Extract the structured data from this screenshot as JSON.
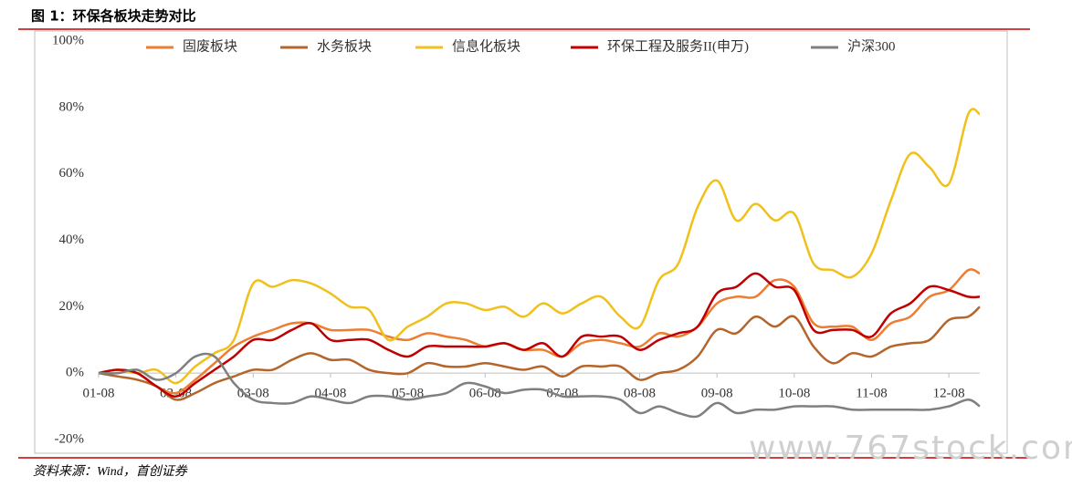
{
  "title": "图 1：环保各板块走势对比",
  "source": "资料来源：Wind，首创证券",
  "watermark": "www.767stock.com",
  "chart_data": {
    "type": "line",
    "x": [
      1,
      1.25,
      1.5,
      1.75,
      2,
      2.25,
      2.5,
      2.75,
      3,
      3.25,
      3.5,
      3.75,
      4,
      4.25,
      4.5,
      4.75,
      5,
      5.25,
      5.5,
      5.75,
      6,
      6.25,
      6.5,
      6.75,
      7,
      7.25,
      7.5,
      7.75,
      8,
      8.25,
      8.5,
      8.75,
      9,
      9.25,
      9.5,
      9.75,
      10,
      10.25,
      10.5,
      10.75,
      11,
      11.25,
      11.5,
      11.75,
      12,
      12.25,
      12.4
    ],
    "series": [
      {
        "name": "固废板块",
        "color": "#ed7d31",
        "values": [
          0,
          1,
          0,
          -4,
          -6,
          -2,
          3,
          8,
          11,
          13,
          15,
          15,
          13,
          13,
          13,
          11,
          10,
          12,
          11,
          10,
          8,
          9,
          7,
          7,
          5,
          9,
          10,
          9,
          8,
          12,
          11,
          14,
          21,
          23,
          23,
          28,
          26,
          15,
          14,
          14,
          10,
          15,
          17,
          23,
          25,
          31,
          30
        ]
      },
      {
        "name": "水务板块",
        "color": "#b5652a",
        "values": [
          0,
          -1,
          -2,
          -4,
          -8,
          -6,
          -3,
          -1,
          1,
          1,
          4,
          6,
          4,
          4,
          1,
          0,
          0,
          3,
          2,
          2,
          3,
          2,
          1,
          2,
          -1,
          2,
          2,
          2,
          -2,
          0,
          1,
          5,
          13,
          12,
          17,
          14,
          17,
          8,
          3,
          6,
          5,
          8,
          9,
          10,
          16,
          17,
          20
        ]
      },
      {
        "name": "信息化板块",
        "color": "#f0c01c",
        "values": [
          0,
          1,
          0,
          1,
          -3,
          2,
          6,
          10,
          27,
          26,
          28,
          27,
          24,
          20,
          19,
          10,
          14,
          17,
          21,
          21,
          19,
          20,
          17,
          21,
          18,
          21,
          23,
          17,
          14,
          28,
          33,
          50,
          58,
          46,
          51,
          46,
          48,
          33,
          31,
          29,
          36,
          52,
          66,
          62,
          57,
          78,
          78
        ]
      },
      {
        "name": "环保工程及服务II(申万)",
        "color": "#c00000",
        "values": [
          0,
          1,
          0,
          -4,
          -7,
          -3,
          1,
          5,
          10,
          10,
          13,
          15,
          10,
          10,
          10,
          7,
          5,
          8,
          8,
          8,
          8,
          9,
          7,
          9,
          5,
          11,
          11,
          11,
          7,
          10,
          12,
          14,
          24,
          26,
          30,
          26,
          25,
          13,
          13,
          13,
          11,
          18,
          21,
          26,
          25,
          23,
          23
        ]
      },
      {
        "name": "沪深300",
        "color": "#7f7f7f",
        "values": [
          0,
          0,
          1,
          -2,
          0,
          5,
          5,
          -3,
          -8,
          -9,
          -9,
          -7,
          -8,
          -9,
          -7,
          -7,
          -8,
          -7,
          -6,
          -3,
          -4,
          -6,
          -5,
          -5,
          -7,
          -7,
          -7,
          -8,
          -12,
          -10,
          -12,
          -13,
          -9,
          -12,
          -11,
          -11,
          -10,
          -10,
          -10,
          -11,
          -11,
          -11,
          -11,
          -11,
          -10,
          -8,
          -10
        ]
      }
    ],
    "xlim": [
      1,
      12.4
    ],
    "xticks": [
      {
        "value": 1,
        "label": "01-08"
      },
      {
        "value": 2,
        "label": "02-08"
      },
      {
        "value": 3,
        "label": "03-08"
      },
      {
        "value": 4,
        "label": "04-08"
      },
      {
        "value": 5,
        "label": "05-08"
      },
      {
        "value": 6,
        "label": "06-08"
      },
      {
        "value": 7,
        "label": "07-08"
      },
      {
        "value": 8,
        "label": "08-08"
      },
      {
        "value": 9,
        "label": "09-08"
      },
      {
        "value": 10,
        "label": "10-08"
      },
      {
        "value": 11,
        "label": "11-08"
      },
      {
        "value": 12,
        "label": "12-08"
      }
    ],
    "ylim": [
      -20,
      100
    ],
    "yticks": [
      {
        "value": -20,
        "label": "-20%"
      },
      {
        "value": 0,
        "label": "0%"
      },
      {
        "value": 20,
        "label": "20%"
      },
      {
        "value": 40,
        "label": "40%"
      },
      {
        "value": 60,
        "label": "60%"
      },
      {
        "value": 80,
        "label": "80%"
      },
      {
        "value": 100,
        "label": "100%"
      }
    ],
    "legend": "top"
  }
}
